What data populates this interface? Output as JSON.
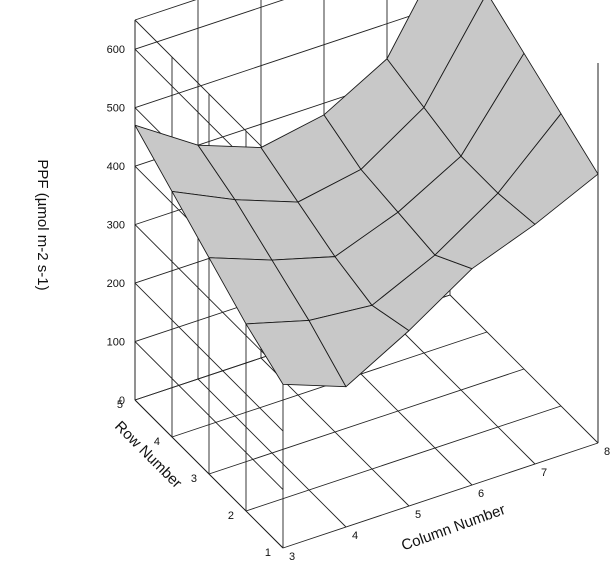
{
  "chart_data": {
    "type": "surface",
    "zlabel": "PPF (µmol m-2 s-1)",
    "row_label": "Row Number",
    "col_label": "Column Number",
    "z_ticks": [
      "0",
      "100",
      "200",
      "300",
      "400",
      "500",
      "600"
    ],
    "row_ticks": [
      "1",
      "2",
      "3",
      "4",
      "5"
    ],
    "col_ticks": [
      "3",
      "4",
      "5",
      "6",
      "7",
      "8"
    ],
    "rows": [
      1,
      2,
      3,
      4,
      5
    ],
    "columns": [
      3,
      4,
      5,
      6,
      7,
      8
    ],
    "zlim": [
      0,
      650
    ],
    "values": [
      [
        280,
        240,
        300,
        370,
        410,
        460
      ],
      [
        320,
        290,
        280,
        330,
        400,
        500
      ],
      [
        370,
        330,
        300,
        340,
        400,
        540
      ],
      [
        420,
        370,
        330,
        350,
        420,
        580
      ],
      [
        470,
        400,
        360,
        380,
        440,
        610
      ]
    ],
    "grid": true
  }
}
